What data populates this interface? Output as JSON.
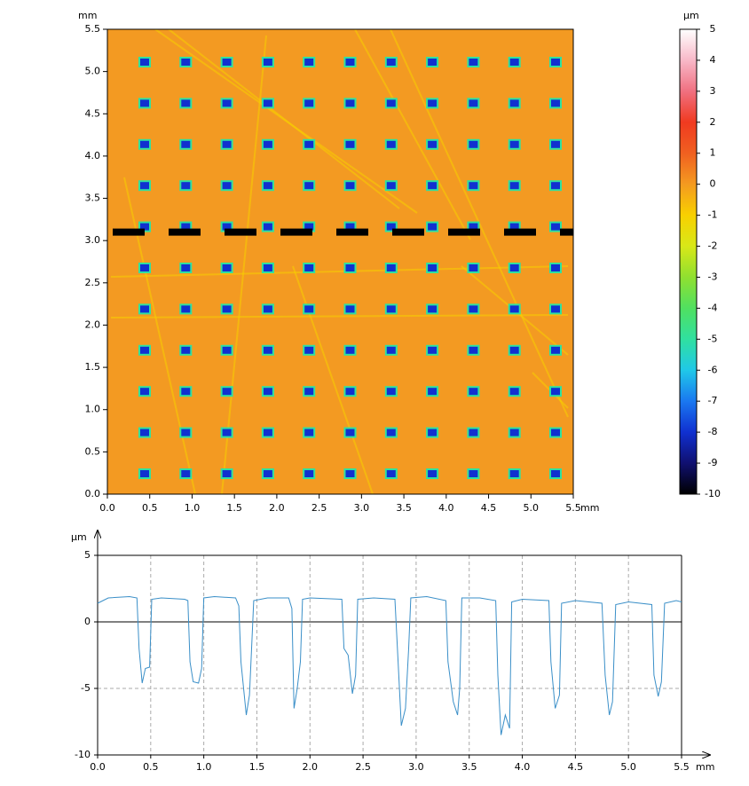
{
  "chart_data": [
    {
      "type": "heatmap",
      "xlabel": "mm",
      "ylabel": "mm",
      "colorbar_label": "µm",
      "xlim": [
        0,
        5.5
      ],
      "ylim": [
        0,
        5.5
      ],
      "xticks": [
        {
          "value": 0,
          "label": "0.0"
        },
        {
          "value": 0.5,
          "label": "0.5"
        },
        {
          "value": 1,
          "label": "1.0"
        },
        {
          "value": 1.5,
          "label": "1.5"
        },
        {
          "value": 2,
          "label": "2.0"
        },
        {
          "value": 2.5,
          "label": "2.5"
        },
        {
          "value": 3,
          "label": "3.0"
        },
        {
          "value": 3.5,
          "label": "3.5"
        },
        {
          "value": 4,
          "label": "4.0"
        },
        {
          "value": 4.5,
          "label": "4.5"
        },
        {
          "value": 5,
          "label": "5.0"
        },
        {
          "value": 5.5,
          "label": "5.5"
        }
      ],
      "yticks": [
        {
          "value": 0,
          "label": "0.0"
        },
        {
          "value": 0.5,
          "label": "0.5"
        },
        {
          "value": 1,
          "label": "1.0"
        },
        {
          "value": 1.5,
          "label": "1.5"
        },
        {
          "value": 2,
          "label": "2.0"
        },
        {
          "value": 2.5,
          "label": "2.5"
        },
        {
          "value": 3,
          "label": "3.0"
        },
        {
          "value": 3.5,
          "label": "3.5"
        },
        {
          "value": 4,
          "label": "4.0"
        },
        {
          "value": 4.5,
          "label": "4.5"
        },
        {
          "value": 5,
          "label": "5.0"
        },
        {
          "value": 5.5,
          "label": "5.5"
        }
      ],
      "clim": [
        -10,
        5
      ],
      "cticks": [
        5,
        4,
        3,
        2,
        1,
        0,
        -1,
        -2,
        -3,
        -4,
        -5,
        -6,
        -7,
        -8,
        -9,
        -10
      ],
      "colormap": [
        "#000000",
        "#101070",
        "#1030d0",
        "#1a78f0",
        "#20c8e8",
        "#30e0a0",
        "#50e060",
        "#90e030",
        "#d8e818",
        "#f8d000",
        "#f49a20",
        "#f06020",
        "#f03a20",
        "#f07080",
        "#f8b8c8",
        "#ffffff"
      ],
      "background": "#f39a22",
      "profile_y": 3.1
    },
    {
      "type": "line",
      "xlabel": "mm",
      "ylabel": "µm",
      "xlim": [
        0,
        5.5
      ],
      "ylim": [
        -10,
        5
      ],
      "xticks": [
        {
          "value": 0,
          "label": "0.0"
        },
        {
          "value": 0.5,
          "label": "0.5"
        },
        {
          "value": 1,
          "label": "1.0"
        },
        {
          "value": 1.5,
          "label": "1.5"
        },
        {
          "value": 2,
          "label": "2.0"
        },
        {
          "value": 2.5,
          "label": "2.5"
        },
        {
          "value": 3,
          "label": "3.0"
        },
        {
          "value": 3.5,
          "label": "3.5"
        },
        {
          "value": 4,
          "label": "4.0"
        },
        {
          "value": 4.5,
          "label": "4.5"
        },
        {
          "value": 5,
          "label": "5.0"
        },
        {
          "value": 5.5,
          "label": "5.5"
        }
      ],
      "yticks": [
        -10,
        -5,
        0,
        5
      ],
      "grid": true,
      "color": "#3a8fc8",
      "x": [
        0,
        0.1,
        0.3,
        0.37,
        0.39,
        0.42,
        0.45,
        0.49,
        0.51,
        0.6,
        0.82,
        0.85,
        0.87,
        0.9,
        0.95,
        0.98,
        1.0,
        1.1,
        1.3,
        1.33,
        1.35,
        1.4,
        1.43,
        1.45,
        1.47,
        1.6,
        1.8,
        1.83,
        1.85,
        1.88,
        1.91,
        1.93,
        2.0,
        2.3,
        2.32,
        2.36,
        2.4,
        2.43,
        2.45,
        2.6,
        2.8,
        2.83,
        2.86,
        2.9,
        2.93,
        2.95,
        3.1,
        3.28,
        3.3,
        3.35,
        3.39,
        3.41,
        3.43,
        3.6,
        3.75,
        3.77,
        3.8,
        3.84,
        3.88,
        3.9,
        4.0,
        4.25,
        4.27,
        4.31,
        4.35,
        4.37,
        4.5,
        4.75,
        4.78,
        4.82,
        4.85,
        4.88,
        5.0,
        5.22,
        5.24,
        5.28,
        5.31,
        5.34,
        5.45,
        5.5
      ],
      "values": [
        1.4,
        1.8,
        1.9,
        1.8,
        -2,
        -4.6,
        -3.5,
        -3.4,
        1.7,
        1.8,
        1.7,
        1.6,
        -3,
        -4.5,
        -4.6,
        -3.5,
        1.8,
        1.9,
        1.8,
        1.2,
        -3,
        -7,
        -5.5,
        -2,
        1.6,
        1.8,
        1.8,
        1.0,
        -6.5,
        -5,
        -3,
        1.7,
        1.8,
        1.7,
        -2,
        -2.5,
        -5.4,
        -4,
        1.7,
        1.8,
        1.7,
        -3,
        -7.8,
        -6.5,
        -2,
        1.8,
        1.9,
        1.6,
        -3,
        -6,
        -7,
        -5,
        1.8,
        1.8,
        1.6,
        -4,
        -8.5,
        -7,
        -8,
        1.5,
        1.7,
        1.6,
        -3,
        -6.5,
        -5.5,
        1.4,
        1.6,
        1.4,
        -4,
        -7,
        -6,
        1.3,
        1.5,
        1.3,
        -4,
        -5.6,
        -4.5,
        1.4,
        1.6,
        1.5
      ]
    }
  ]
}
